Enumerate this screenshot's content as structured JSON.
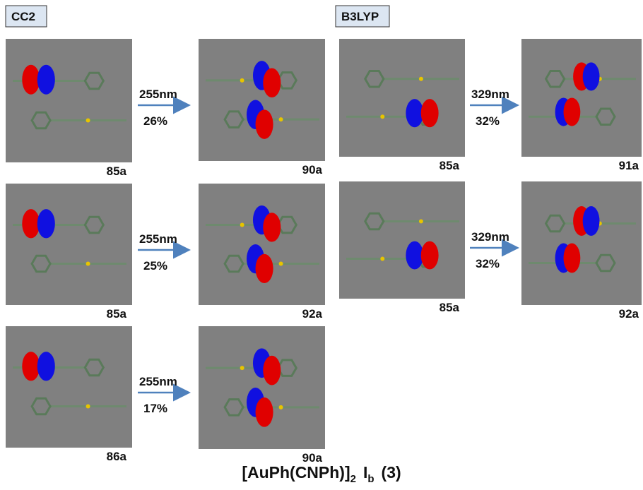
{
  "sections": [
    {
      "method": "CC2",
      "transitions": [
        {
          "from": "85a",
          "to": "90a",
          "wavelength": "255nm",
          "weight": "26%"
        },
        {
          "from": "85a",
          "to": "92a",
          "wavelength": "255nm",
          "weight": "25%"
        },
        {
          "from": "86a",
          "to": "90a",
          "wavelength": "255nm",
          "weight": "17%"
        }
      ]
    },
    {
      "method": "B3LYP",
      "transitions": [
        {
          "from": "85a",
          "to": "91a",
          "wavelength": "329nm",
          "weight": "32%"
        },
        {
          "from": "85a",
          "to": "92a",
          "wavelength": "329nm",
          "weight": "32%"
        }
      ]
    }
  ],
  "caption": {
    "main": "[AuPh(CNPh)]",
    "sub1": "2",
    "symbol": "I",
    "sub2": "b",
    "end": "(3)"
  }
}
